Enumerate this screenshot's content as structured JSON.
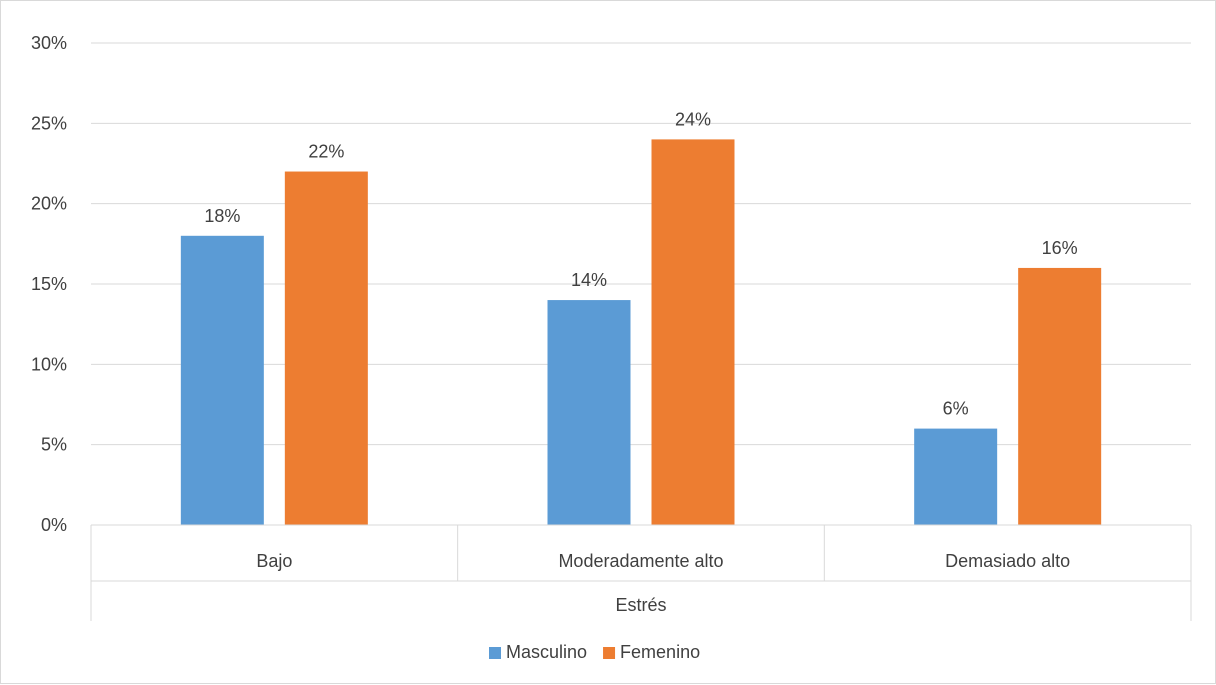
{
  "chart_data": {
    "type": "bar",
    "categories": [
      "Bajo",
      "Moderadamente alto",
      "Demasiado alto"
    ],
    "series": [
      {
        "name": "Masculino",
        "values": [
          18,
          14,
          6
        ],
        "labels": [
          "18%",
          "14%",
          "6%"
        ],
        "color": "#5b9bd5"
      },
      {
        "name": "Femenino",
        "values": [
          22,
          24,
          16
        ],
        "labels": [
          "22%",
          "24%",
          "16%"
        ],
        "color": "#ed7d31"
      }
    ],
    "y_ticks": [
      0,
      5,
      10,
      15,
      20,
      25,
      30
    ],
    "y_tick_labels": [
      "0%",
      "5%",
      "10%",
      "15%",
      "20%",
      "25%",
      "30%"
    ],
    "ylim": [
      0,
      30
    ],
    "xlabel": "Estrés",
    "ylabel": "",
    "title": "",
    "grid": true,
    "legend": "bottom",
    "gridline_color": "#d9d9d9"
  }
}
